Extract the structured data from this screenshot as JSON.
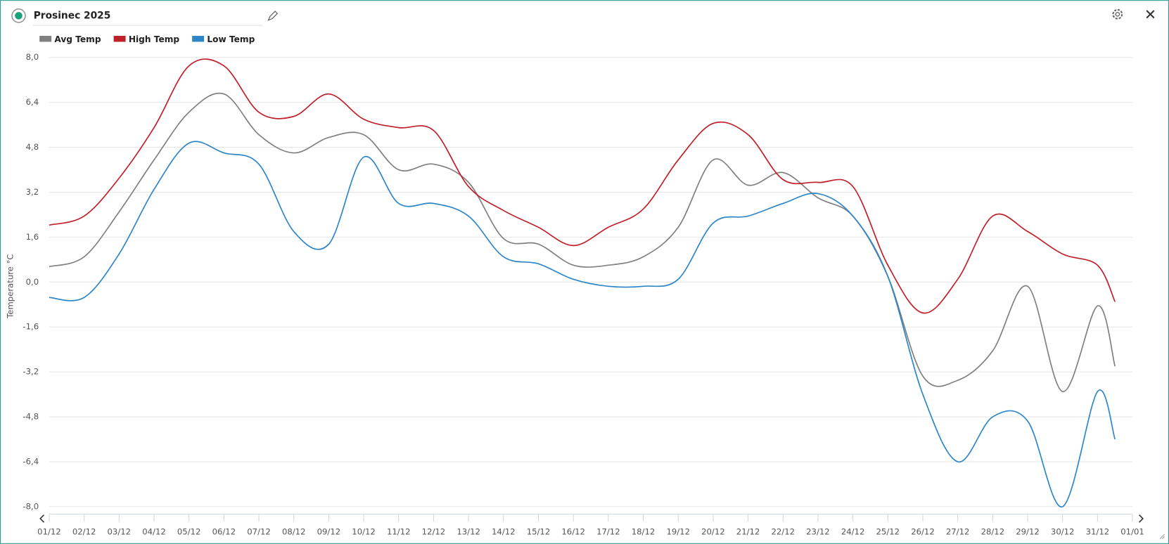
{
  "chart_data": {
    "type": "line",
    "title": "Prosinec 2025",
    "y_label": "Temperature °C",
    "legend": "top-left",
    "grid": true,
    "x": [
      0,
      1,
      2,
      3,
      4,
      5,
      6,
      7,
      8,
      9,
      10,
      11,
      12,
      13,
      14,
      15,
      16,
      17,
      18,
      19,
      20,
      21,
      22,
      23,
      24,
      25,
      26,
      27,
      28,
      29,
      30,
      30.5
    ],
    "xlim": [
      0,
      31
    ],
    "xticks": [
      {
        "value": 0,
        "label": "01/12"
      },
      {
        "value": 1,
        "label": "02/12"
      },
      {
        "value": 2,
        "label": "03/12"
      },
      {
        "value": 3,
        "label": "04/12"
      },
      {
        "value": 4,
        "label": "05/12"
      },
      {
        "value": 5,
        "label": "06/12"
      },
      {
        "value": 6,
        "label": "07/12"
      },
      {
        "value": 7,
        "label": "08/12"
      },
      {
        "value": 8,
        "label": "09/12"
      },
      {
        "value": 9,
        "label": "10/12"
      },
      {
        "value": 10,
        "label": "11/12"
      },
      {
        "value": 11,
        "label": "12/12"
      },
      {
        "value": 12,
        "label": "13/12"
      },
      {
        "value": 13,
        "label": "14/12"
      },
      {
        "value": 14,
        "label": "15/12"
      },
      {
        "value": 15,
        "label": "16/12"
      },
      {
        "value": 16,
        "label": "17/12"
      },
      {
        "value": 17,
        "label": "18/12"
      },
      {
        "value": 18,
        "label": "19/12"
      },
      {
        "value": 19,
        "label": "20/12"
      },
      {
        "value": 20,
        "label": "21/12"
      },
      {
        "value": 21,
        "label": "22/12"
      },
      {
        "value": 22,
        "label": "23/12"
      },
      {
        "value": 23,
        "label": "24/12"
      },
      {
        "value": 24,
        "label": "25/12"
      },
      {
        "value": 25,
        "label": "26/12"
      },
      {
        "value": 26,
        "label": "27/12"
      },
      {
        "value": 27,
        "label": "28/12"
      },
      {
        "value": 28,
        "label": "29/12"
      },
      {
        "value": 29,
        "label": "30/12"
      },
      {
        "value": 30,
        "label": "31/12"
      },
      {
        "value": 31,
        "label": "01/01"
      }
    ],
    "ylim": [
      -8,
      8
    ],
    "yticks": [
      {
        "value": 8,
        "label": "8,0"
      },
      {
        "value": 6.4,
        "label": "6,4"
      },
      {
        "value": 4.8,
        "label": "4,8"
      },
      {
        "value": 3.2,
        "label": "3,2"
      },
      {
        "value": 1.6,
        "label": "1,6"
      },
      {
        "value": 0,
        "label": "0,0"
      },
      {
        "value": -1.6,
        "label": "-1,6"
      },
      {
        "value": -3.2,
        "label": "-3,2"
      },
      {
        "value": -4.8,
        "label": "-4,8"
      },
      {
        "value": -6.4,
        "label": "-6,4"
      },
      {
        "value": -8,
        "label": "-8,0"
      }
    ],
    "series": [
      {
        "name": "Avg Temp",
        "color": "#808080",
        "values": [
          0.55,
          0.9,
          2.5,
          4.35,
          6.05,
          6.7,
          5.25,
          4.6,
          5.15,
          5.25,
          4.0,
          4.2,
          3.55,
          1.55,
          1.35,
          0.6,
          0.6,
          0.9,
          1.95,
          4.35,
          3.45,
          3.9,
          3.0,
          2.35,
          0.2,
          -3.35,
          -3.5,
          -2.45,
          -0.15,
          -3.9,
          -0.85,
          -3.0
        ]
      },
      {
        "name": "High Temp",
        "color": "#c0202a",
        "values": [
          2.03,
          2.35,
          3.7,
          5.5,
          7.7,
          7.7,
          6.05,
          5.9,
          6.7,
          5.8,
          5.5,
          5.4,
          3.4,
          2.55,
          1.95,
          1.3,
          1.95,
          2.6,
          4.35,
          5.65,
          5.25,
          3.65,
          3.55,
          3.4,
          0.6,
          -1.1,
          0.1,
          2.35,
          1.8,
          1.0,
          0.6,
          -0.7
        ]
      },
      {
        "name": "Low Temp",
        "color": "#2e86c8",
        "values": [
          -0.55,
          -0.55,
          1.0,
          3.3,
          4.95,
          4.6,
          4.2,
          1.8,
          1.35,
          4.45,
          2.8,
          2.8,
          2.35,
          0.9,
          0.65,
          0.1,
          -0.15,
          -0.15,
          0.1,
          2.1,
          2.35,
          2.8,
          3.15,
          2.35,
          0.2,
          -4.0,
          -6.4,
          -4.8,
          -4.95,
          -8.0,
          -3.9,
          -5.6
        ]
      }
    ]
  }
}
